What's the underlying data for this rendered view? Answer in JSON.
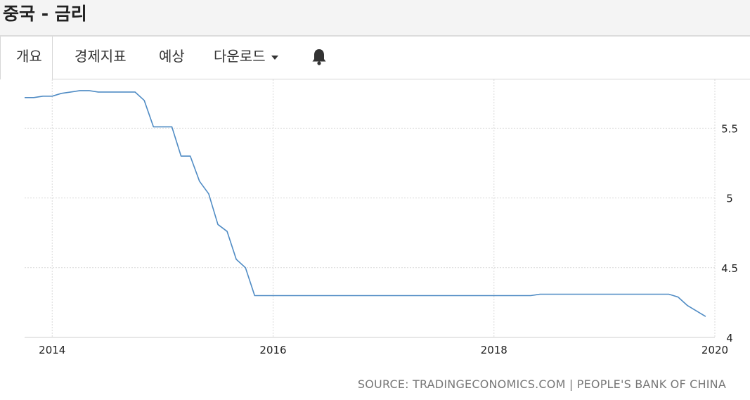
{
  "header": {
    "title": "중국 - 금리"
  },
  "tabs": [
    {
      "label": "개요",
      "active": true
    },
    {
      "label": "경제지표"
    },
    {
      "label": "예상"
    },
    {
      "label": "다운로드"
    }
  ],
  "icons": {
    "alert": "bell-icon",
    "download_menu": "caret-down-icon"
  },
  "source_text": "SOURCE: TRADINGECONOMICS.COM | PEOPLE'S BANK OF CHINA",
  "colors": {
    "line": "#4f8bc4",
    "grid": "#d9d9d9"
  },
  "chart_data": {
    "type": "line",
    "x_ticks": [
      "2014",
      "2016",
      "2018",
      "2020"
    ],
    "y_ticks": [
      "4",
      "4.5",
      "5",
      "5.5"
    ],
    "ylim": [
      4,
      5.85
    ],
    "xlim": [
      "2013-10",
      "2020-01"
    ],
    "grid": true,
    "y_axis_position": "right",
    "series": [
      {
        "x": [
          "2013-10",
          "2013-11",
          "2013-12",
          "2014-01",
          "2014-02",
          "2014-03",
          "2014-04",
          "2014-05",
          "2014-06",
          "2014-07",
          "2014-08",
          "2014-09",
          "2014-10",
          "2014-11",
          "2014-12",
          "2015-01",
          "2015-02",
          "2015-03",
          "2015-04",
          "2015-05",
          "2015-06",
          "2015-07",
          "2015-08",
          "2015-09",
          "2015-10",
          "2015-11",
          "2015-12",
          "2016-06",
          "2017-01",
          "2017-06",
          "2018-01",
          "2018-05",
          "2018-06",
          "2019-01",
          "2019-06",
          "2019-08",
          "2019-09",
          "2019-10",
          "2019-11",
          "2019-12"
        ],
        "values": [
          5.72,
          5.72,
          5.73,
          5.73,
          5.75,
          5.76,
          5.77,
          5.77,
          5.76,
          5.76,
          5.76,
          5.76,
          5.76,
          5.7,
          5.51,
          5.51,
          5.51,
          5.3,
          5.3,
          5.12,
          5.03,
          4.81,
          4.76,
          4.56,
          4.5,
          4.3,
          4.3,
          4.3,
          4.3,
          4.3,
          4.3,
          4.3,
          4.31,
          4.31,
          4.31,
          4.31,
          4.29,
          4.23,
          4.19,
          4.15
        ]
      }
    ]
  }
}
